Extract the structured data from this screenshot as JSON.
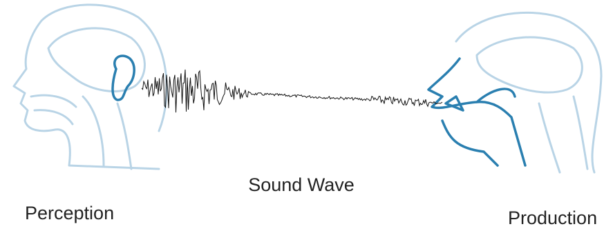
{
  "labels": {
    "center": "Sound Wave",
    "left": "Perception",
    "right": "Production"
  }
}
